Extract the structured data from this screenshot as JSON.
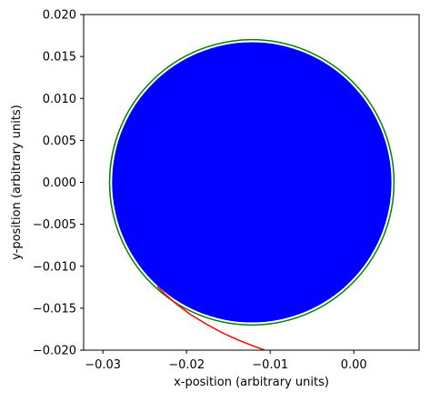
{
  "chart_data": {
    "type": "scatter",
    "title": "",
    "xlabel": "x-position (arbitrary units)",
    "ylabel": "y-position (arbitrary units)",
    "xlim": [
      -0.0323,
      0.0078
    ],
    "ylim": [
      -0.02,
      0.02
    ],
    "xticks": [
      -0.03,
      -0.02,
      -0.01,
      0.0
    ],
    "xtick_labels": [
      "−0.03",
      "−0.02",
      "−0.01",
      "0.00"
    ],
    "yticks": [
      0.02,
      0.015,
      0.01,
      0.005,
      0.0,
      -0.005,
      -0.01,
      -0.015,
      -0.02
    ],
    "ytick_labels": [
      "0.020",
      "0.015",
      "0.010",
      "0.005",
      "0.000",
      "−0.005",
      "−0.010",
      "−0.015",
      "−0.020"
    ],
    "grid": false,
    "legend": "none",
    "series": [
      {
        "kind": "filled-circle",
        "color": "#0000ff",
        "center": [
          -0.0122,
          0.0
        ],
        "radius": 0.0167
      },
      {
        "kind": "circle-outline",
        "color": "#008000",
        "center": [
          -0.0122,
          0.0
        ],
        "radius": 0.017
      },
      {
        "kind": "line",
        "color": "#ff0000",
        "x": [
          -0.0235,
          -0.0225,
          -0.0212,
          -0.0196,
          -0.0178,
          -0.0158,
          -0.0138,
          -0.012,
          -0.0104
        ],
        "y": [
          -0.0124,
          -0.0134,
          -0.0145,
          -0.0157,
          -0.0168,
          -0.0179,
          -0.0188,
          -0.0195,
          -0.0201
        ]
      }
    ]
  }
}
